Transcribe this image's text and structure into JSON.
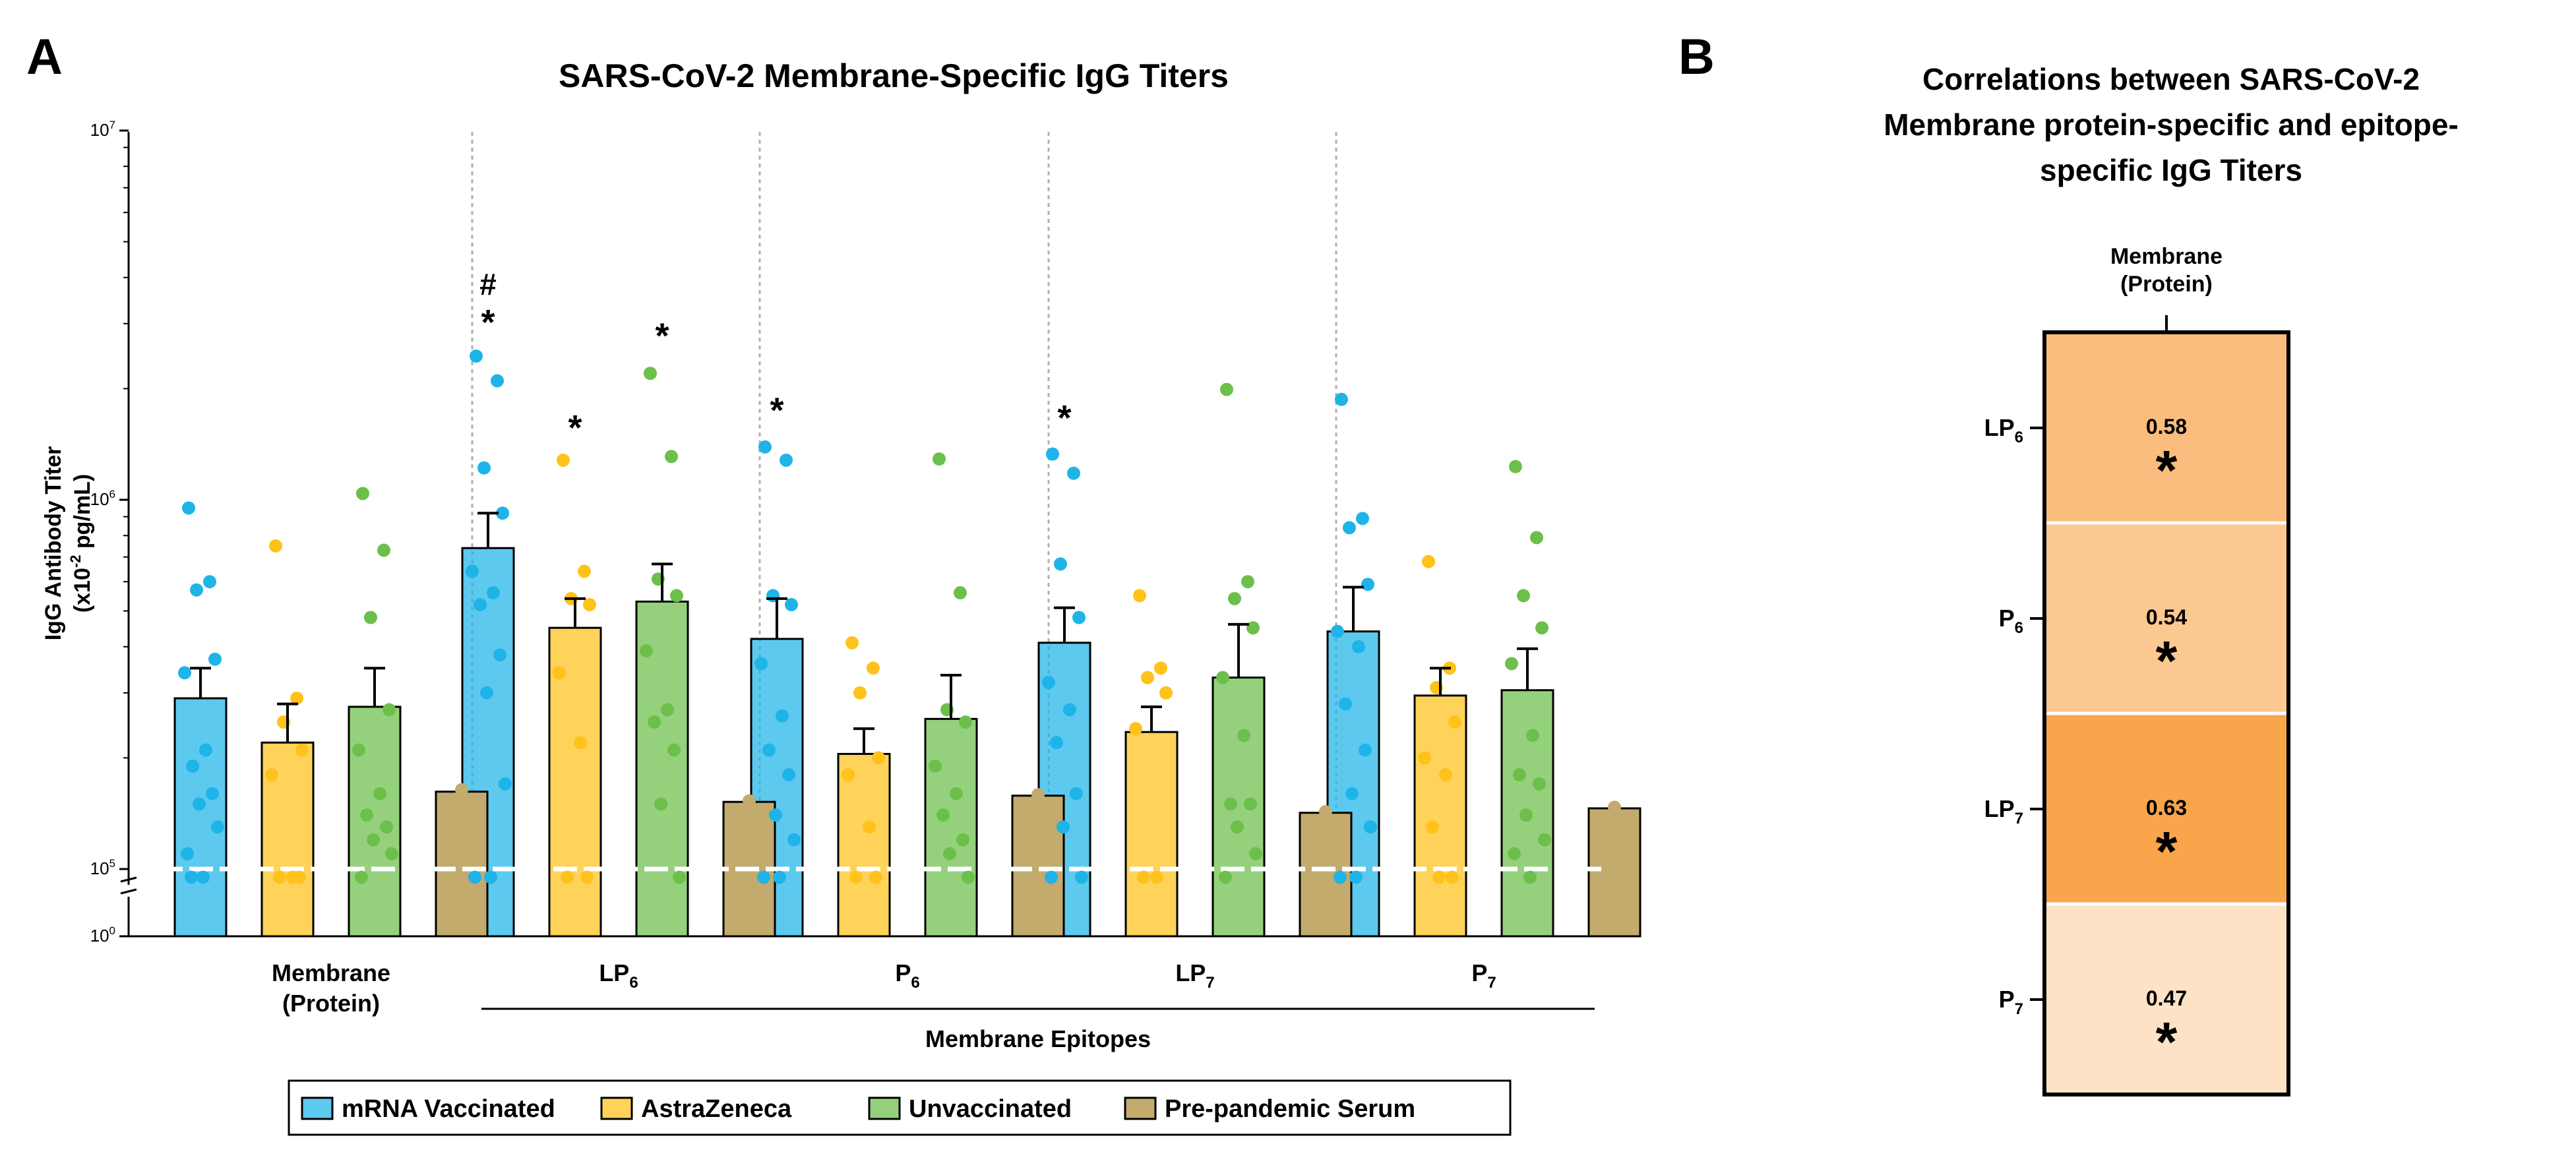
{
  "colors": {
    "mrna": "#1eb4e8",
    "az": "#ffc21a",
    "unvax": "#6cbf4b",
    "pre": "#c2ab6c",
    "sig_star": "#ee1c24",
    "sig_hash": "#1a1aa8",
    "axis": "#000000",
    "divider": "#b0b0b0",
    "heat_047": "#fde2c6",
    "heat_054": "#fcc891",
    "heat_058": "#fbbd7e",
    "heat_063": "#f9a54c"
  },
  "panel_a": {
    "label": "A",
    "title": "SARS-CoV-2 Membrane-Specific IgG Titers",
    "ylabel_line1": "IgG Antibody Titer",
    "ylabel_line2_pre": "(x10",
    "ylabel_line2_sup": "-2",
    "ylabel_line2_post": " pg/mL)",
    "group_bracket_label": "Membrane Epitopes"
  },
  "chart_data": {
    "type": "bar",
    "title": "SARS-CoV-2 Membrane-Specific IgG Titers",
    "ylabel": "IgG Antibody Titer (x10^-2 pg/mL)",
    "yscale": "log",
    "ylim": [
      100000,
      10000000
    ],
    "yticks": [
      {
        "value": 100000,
        "base": "10",
        "exp": "5"
      },
      {
        "value": 1000000,
        "base": "10",
        "exp": "6"
      },
      {
        "value": 10000000,
        "base": "10",
        "exp": "7"
      }
    ],
    "ybreak_label": {
      "base": "10",
      "exp": "0"
    },
    "detection_limit": 100000,
    "groups": [
      {
        "label_main": "Membrane",
        "label_sub": "",
        "label_line2": "(Protein)"
      },
      {
        "label_main": "LP",
        "label_sub": "6",
        "label_line2": ""
      },
      {
        "label_main": "P",
        "label_sub": "6",
        "label_line2": ""
      },
      {
        "label_main": "LP",
        "label_sub": "7",
        "label_line2": ""
      },
      {
        "label_main": "P",
        "label_sub": "7",
        "label_line2": ""
      }
    ],
    "series": [
      {
        "name": "mRNA Vaccinated",
        "color_key": "mrna",
        "values": [
          290000,
          740000,
          420000,
          410000,
          440000
        ],
        "errors": [
          60000,
          180000,
          120000,
          100000,
          140000
        ],
        "points": [
          [
            950000,
            600000,
            570000,
            370000,
            340000,
            210000,
            190000,
            160000,
            150000,
            130000,
            110000,
            95000,
            95000
          ],
          [
            2450000,
            2100000,
            1220000,
            920000,
            640000,
            560000,
            520000,
            380000,
            300000,
            170000,
            95000,
            95000
          ],
          [
            1390000,
            1280000,
            550000,
            520000,
            360000,
            260000,
            210000,
            180000,
            140000,
            120000,
            95000,
            95000
          ],
          [
            1330000,
            1180000,
            670000,
            480000,
            320000,
            270000,
            220000,
            160000,
            130000,
            95000,
            95000
          ],
          [
            1870000,
            890000,
            840000,
            590000,
            440000,
            400000,
            280000,
            210000,
            160000,
            130000,
            95000,
            95000
          ]
        ],
        "markers": [
          [],
          [
            {
              "symbol": "#",
              "color_key": "sig_hash",
              "value": 3900000
            },
            {
              "symbol": "*",
              "color_key": "sig_star",
              "value": 3050000
            }
          ],
          [
            {
              "symbol": "*",
              "color_key": "sig_star",
              "value": 1760000
            }
          ],
          [
            {
              "symbol": "*",
              "color_key": "sig_star",
              "value": 1680000
            }
          ],
          []
        ]
      },
      {
        "name": "AstraZeneca",
        "color_key": "az",
        "values": [
          220000,
          450000,
          205000,
          235000,
          295000
        ],
        "errors": [
          60000,
          90000,
          35000,
          40000,
          55000
        ],
        "points": [
          [
            750000,
            290000,
            250000,
            210000,
            180000,
            95000,
            95000,
            95000
          ],
          [
            1280000,
            640000,
            540000,
            520000,
            340000,
            220000,
            95000,
            95000
          ],
          [
            410000,
            350000,
            300000,
            200000,
            180000,
            130000,
            95000,
            95000
          ],
          [
            550000,
            350000,
            330000,
            300000,
            240000,
            95000,
            95000
          ],
          [
            680000,
            350000,
            310000,
            250000,
            200000,
            180000,
            130000,
            95000,
            95000
          ]
        ],
        "markers": [
          [],
          [
            {
              "symbol": "*",
              "color_key": "sig_star",
              "value": 1580000
            }
          ],
          [],
          [],
          []
        ]
      },
      {
        "name": "Unvaccinated",
        "color_key": "unvax",
        "values": [
          275000,
          530000,
          255000,
          330000,
          305000
        ],
        "errors": [
          75000,
          140000,
          80000,
          130000,
          90000
        ],
        "points": [
          [
            1040000,
            730000,
            480000,
            270000,
            210000,
            160000,
            140000,
            130000,
            120000,
            110000,
            95000
          ],
          [
            2200000,
            1310000,
            610000,
            550000,
            390000,
            270000,
            250000,
            210000,
            150000,
            95000
          ],
          [
            1290000,
            560000,
            270000,
            250000,
            190000,
            160000,
            140000,
            120000,
            110000,
            95000
          ],
          [
            1990000,
            600000,
            540000,
            450000,
            330000,
            230000,
            150000,
            150000,
            130000,
            110000,
            95000
          ],
          [
            1230000,
            790000,
            550000,
            450000,
            360000,
            230000,
            180000,
            170000,
            140000,
            120000,
            110000,
            95000
          ]
        ],
        "markers": [
          [],
          [
            {
              "symbol": "*",
              "color_key": "sig_star",
              "value": 2800000
            }
          ],
          [],
          [],
          []
        ]
      },
      {
        "name": "Pre-pandemic Serum",
        "color_key": "pre",
        "values": [
          162000,
          152000,
          158000,
          142000,
          146000
        ],
        "errors": [
          0,
          0,
          0,
          0,
          0
        ],
        "points": [
          [
            164000
          ],
          [
            153000
          ],
          [
            159000
          ],
          [
            143000
          ],
          [
            147000
          ]
        ],
        "markers": [
          [],
          [],
          [],
          [],
          []
        ]
      }
    ],
    "legend_position": "bottom-center"
  },
  "legend": {
    "items": [
      {
        "label": "mRNA Vaccinated",
        "color_key": "mrna"
      },
      {
        "label": "AstraZeneca",
        "color_key": "az"
      },
      {
        "label": "Unvaccinated",
        "color_key": "unvax"
      },
      {
        "label": "Pre-pandemic Serum",
        "color_key": "pre"
      }
    ]
  },
  "panel_b": {
    "label": "B",
    "title_lines": [
      "Correlations between SARS-CoV-2",
      "Membrane protein-specific and epitope-",
      "specific IgG Titers"
    ],
    "column_header_line1": "Membrane",
    "column_header_line2": "(Protein)",
    "heatmap": {
      "type": "heatmap",
      "column": "Membrane (Protein)",
      "rows": [
        {
          "label_main": "LP",
          "label_sub": "6",
          "value": 0.58,
          "value_text": "0.58",
          "significance": "*",
          "color_key": "heat_058"
        },
        {
          "label_main": "P",
          "label_sub": "6",
          "value": 0.54,
          "value_text": "0.54",
          "significance": "*",
          "color_key": "heat_054"
        },
        {
          "label_main": "LP",
          "label_sub": "7",
          "value": 0.63,
          "value_text": "0.63",
          "significance": "*",
          "color_key": "heat_063"
        },
        {
          "label_main": "P",
          "label_sub": "7",
          "value": 0.47,
          "value_text": "0.47",
          "significance": "*",
          "color_key": "heat_047"
        }
      ]
    }
  }
}
